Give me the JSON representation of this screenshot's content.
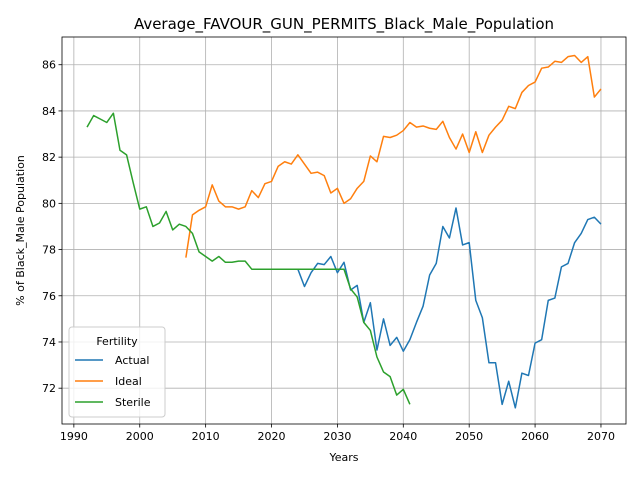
{
  "chart_data": {
    "type": "line",
    "title": "Average_FAVOUR_GUN_PERMITS_Black_Male_Population",
    "xlabel": "Years",
    "ylabel": "% of Black_Male Population",
    "xlim": [
      1988.2,
      2073.8
    ],
    "ylim": [
      70.45,
      87.2
    ],
    "x_ticks": [
      1990,
      2000,
      2010,
      2020,
      2030,
      2040,
      2050,
      2060,
      2070
    ],
    "y_ticks": [
      72,
      74,
      76,
      78,
      80,
      82,
      84,
      86
    ],
    "grid": true,
    "legend": {
      "title": "Fertility",
      "position": "lower-left"
    },
    "series": [
      {
        "name": "Actual",
        "color": "#1f77b4",
        "points": [
          [
            2024,
            77.15
          ],
          [
            2025,
            76.4
          ],
          [
            2026,
            77.0
          ],
          [
            2027,
            77.4
          ],
          [
            2028,
            77.35
          ],
          [
            2029,
            77.7
          ],
          [
            2030,
            77.0
          ],
          [
            2031,
            77.45
          ],
          [
            2032,
            76.25
          ],
          [
            2033,
            76.45
          ],
          [
            2034,
            74.85
          ],
          [
            2035,
            75.7
          ],
          [
            2036,
            73.65
          ],
          [
            2037,
            75.0
          ],
          [
            2038,
            73.85
          ],
          [
            2039,
            74.2
          ],
          [
            2040,
            73.6
          ],
          [
            2041,
            74.1
          ],
          [
            2042,
            74.85
          ],
          [
            2043,
            75.55
          ],
          [
            2044,
            76.9
          ],
          [
            2045,
            77.4
          ],
          [
            2046,
            79.0
          ],
          [
            2047,
            78.5
          ],
          [
            2048,
            79.8
          ],
          [
            2049,
            78.2
          ],
          [
            2050,
            78.3
          ],
          [
            2051,
            75.8
          ],
          [
            2052,
            75.05
          ],
          [
            2053,
            73.1
          ],
          [
            2054,
            73.1
          ],
          [
            2055,
            71.3
          ],
          [
            2056,
            72.3
          ],
          [
            2057,
            71.15
          ],
          [
            2058,
            72.65
          ],
          [
            2059,
            72.55
          ],
          [
            2060,
            73.95
          ],
          [
            2061,
            74.1
          ],
          [
            2062,
            75.8
          ],
          [
            2063,
            75.9
          ],
          [
            2064,
            77.25
          ],
          [
            2065,
            77.4
          ],
          [
            2066,
            78.3
          ],
          [
            2067,
            78.7
          ],
          [
            2068,
            79.3
          ],
          [
            2069,
            79.4
          ],
          [
            2070,
            79.1
          ]
        ]
      },
      {
        "name": "Ideal",
        "color": "#ff7f0e",
        "points": [
          [
            2007,
            77.65
          ],
          [
            2008,
            79.5
          ],
          [
            2009,
            79.7
          ],
          [
            2010,
            79.85
          ],
          [
            2011,
            80.8
          ],
          [
            2012,
            80.1
          ],
          [
            2013,
            79.85
          ],
          [
            2014,
            79.85
          ],
          [
            2015,
            79.75
          ],
          [
            2016,
            79.85
          ],
          [
            2017,
            80.55
          ],
          [
            2018,
            80.25
          ],
          [
            2019,
            80.85
          ],
          [
            2020,
            80.95
          ],
          [
            2021,
            81.6
          ],
          [
            2022,
            81.8
          ],
          [
            2023,
            81.7
          ],
          [
            2024,
            82.1
          ],
          [
            2025,
            81.7
          ],
          [
            2026,
            81.3
          ],
          [
            2027,
            81.35
          ],
          [
            2028,
            81.2
          ],
          [
            2029,
            80.45
          ],
          [
            2030,
            80.65
          ],
          [
            2031,
            80.0
          ],
          [
            2032,
            80.2
          ],
          [
            2033,
            80.65
          ],
          [
            2034,
            80.95
          ],
          [
            2035,
            82.05
          ],
          [
            2036,
            81.8
          ],
          [
            2037,
            82.9
          ],
          [
            2038,
            82.85
          ],
          [
            2039,
            82.95
          ],
          [
            2040,
            83.15
          ],
          [
            2041,
            83.5
          ],
          [
            2042,
            83.3
          ],
          [
            2043,
            83.35
          ],
          [
            2044,
            83.25
          ],
          [
            2045,
            83.2
          ],
          [
            2046,
            83.55
          ],
          [
            2047,
            82.85
          ],
          [
            2048,
            82.35
          ],
          [
            2049,
            83.0
          ],
          [
            2050,
            82.2
          ],
          [
            2051,
            83.1
          ],
          [
            2052,
            82.2
          ],
          [
            2053,
            82.95
          ],
          [
            2054,
            83.3
          ],
          [
            2055,
            83.6
          ],
          [
            2056,
            84.2
          ],
          [
            2057,
            84.1
          ],
          [
            2058,
            84.8
          ],
          [
            2059,
            85.1
          ],
          [
            2060,
            85.25
          ],
          [
            2061,
            85.85
          ],
          [
            2062,
            85.9
          ],
          [
            2063,
            86.15
          ],
          [
            2064,
            86.1
          ],
          [
            2065,
            86.35
          ],
          [
            2066,
            86.4
          ],
          [
            2067,
            86.1
          ],
          [
            2068,
            86.35
          ],
          [
            2069,
            84.6
          ],
          [
            2070,
            84.95
          ]
        ]
      },
      {
        "name": "Sterile",
        "color": "#2ca02c",
        "points": [
          [
            1992,
            83.3
          ],
          [
            1993,
            83.8
          ],
          [
            1994,
            83.65
          ],
          [
            1995,
            83.5
          ],
          [
            1996,
            83.9
          ],
          [
            1997,
            82.3
          ],
          [
            1998,
            82.1
          ],
          [
            1999,
            80.9
          ],
          [
            2000,
            79.75
          ],
          [
            2001,
            79.85
          ],
          [
            2002,
            79.0
          ],
          [
            2003,
            79.15
          ],
          [
            2004,
            79.65
          ],
          [
            2005,
            78.85
          ],
          [
            2006,
            79.1
          ],
          [
            2007,
            79.0
          ],
          [
            2008,
            78.7
          ],
          [
            2009,
            77.9
          ],
          [
            2010,
            77.7
          ],
          [
            2011,
            77.5
          ],
          [
            2012,
            77.7
          ],
          [
            2013,
            77.45
          ],
          [
            2014,
            77.45
          ],
          [
            2015,
            77.5
          ],
          [
            2016,
            77.5
          ],
          [
            2017,
            77.15
          ],
          [
            2018,
            77.15
          ],
          [
            2019,
            77.15
          ],
          [
            2020,
            77.15
          ],
          [
            2021,
            77.15
          ],
          [
            2022,
            77.15
          ],
          [
            2023,
            77.15
          ],
          [
            2024,
            77.15
          ],
          [
            2025,
            77.15
          ],
          [
            2026,
            77.15
          ],
          [
            2027,
            77.15
          ],
          [
            2028,
            77.15
          ],
          [
            2029,
            77.15
          ],
          [
            2030,
            77.15
          ],
          [
            2031,
            77.15
          ],
          [
            2032,
            76.3
          ],
          [
            2033,
            75.95
          ],
          [
            2034,
            74.85
          ],
          [
            2035,
            74.5
          ],
          [
            2036,
            73.35
          ],
          [
            2037,
            72.7
          ],
          [
            2038,
            72.5
          ],
          [
            2039,
            71.7
          ],
          [
            2040,
            71.95
          ],
          [
            2041,
            71.3
          ]
        ]
      }
    ]
  }
}
